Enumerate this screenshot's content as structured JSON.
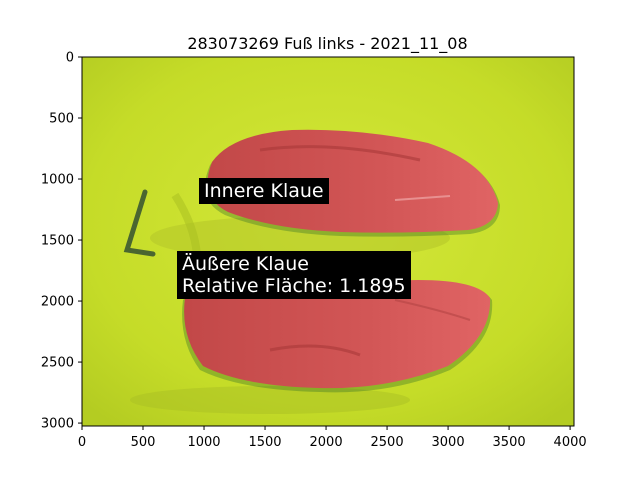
{
  "figure": {
    "title": "283073269 Fuß links - 2021_11_08",
    "x_ticks": [
      "0",
      "500",
      "1000",
      "1500",
      "2000",
      "2500",
      "3000",
      "3500",
      "4000"
    ],
    "y_ticks": [
      "0",
      "500",
      "1000",
      "1500",
      "2000",
      "2500",
      "3000"
    ]
  },
  "image": {
    "description_colors": {
      "background": "#c8e028",
      "claw_overlay": "#d85858",
      "claw_dark": "#a83838",
      "marker_pen": "#4a6630"
    }
  },
  "annotations": {
    "inner_claw": "Innere Klaue",
    "outer_claw_line1": "Äußere Klaue",
    "outer_claw_line2": "Relative Fläche: 1.1895"
  }
}
